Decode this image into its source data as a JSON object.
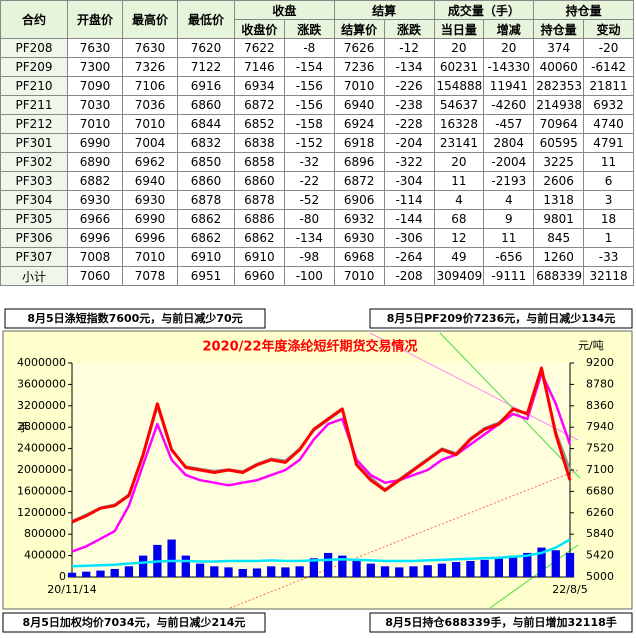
{
  "table": {
    "header_top": [
      "合约",
      "开盘价",
      "最高价",
      "最低价",
      "收盘",
      "结算",
      "成交量（手）",
      "持仓量"
    ],
    "header_sub": [
      "收盘价",
      "涨跌",
      "结算价",
      "涨跌",
      "当日量",
      "增减",
      "持仓量",
      "变动"
    ],
    "rows": [
      [
        "PF208",
        7630,
        7630,
        7620,
        7622,
        -8,
        7626,
        -12,
        20,
        20,
        374,
        -20
      ],
      [
        "PF209",
        7300,
        7326,
        7122,
        7146,
        -154,
        7236,
        -134,
        60231,
        -14330,
        40060,
        -6142
      ],
      [
        "PF210",
        7090,
        7106,
        6916,
        6934,
        -156,
        7010,
        -226,
        154888,
        11941,
        282353,
        21811
      ],
      [
        "PF211",
        7030,
        7036,
        6860,
        6872,
        -156,
        6940,
        -238,
        54637,
        -4260,
        214938,
        6932
      ],
      [
        "PF212",
        7010,
        7010,
        6844,
        6852,
        -158,
        6924,
        -228,
        16328,
        -457,
        70964,
        4740
      ],
      [
        "PF301",
        6990,
        7004,
        6832,
        6838,
        -152,
        6918,
        -204,
        23141,
        2804,
        60595,
        4791
      ],
      [
        "PF302",
        6890,
        6962,
        6850,
        6858,
        -32,
        6896,
        -322,
        20,
        -2004,
        3225,
        11
      ],
      [
        "PF303",
        6882,
        6940,
        6860,
        6860,
        -22,
        6872,
        -304,
        11,
        -2193,
        2606,
        6
      ],
      [
        "PF304",
        6930,
        6930,
        6878,
        6878,
        -52,
        6906,
        -114,
        4,
        4,
        1318,
        3
      ],
      [
        "PF305",
        6966,
        6990,
        6862,
        6886,
        -80,
        6932,
        -144,
        68,
        9,
        9801,
        18
      ],
      [
        "PF306",
        6996,
        6996,
        6862,
        6862,
        -134,
        6930,
        -306,
        12,
        11,
        845,
        1
      ],
      [
        "PF307",
        7008,
        7010,
        6910,
        6910,
        -98,
        6968,
        -264,
        49,
        -656,
        1260,
        -33
      ],
      [
        "小计",
        7060,
        7078,
        6951,
        6960,
        -100,
        7010,
        -208,
        309409,
        -9111,
        688339,
        32118
      ]
    ]
  },
  "notes": {
    "top_left": "8月5日涤短指数7600元，与前日减少70元",
    "top_right": "8月5日PF209价7236元，与前日减少134元",
    "bottom_left": "8月5日加权均价7034元，与前日减少214元",
    "bottom_right": "8月5日持仓688339手，与前日增加32118手"
  },
  "chart_data": {
    "type": "line",
    "title": "2020/22年度涤纶短纤期货交易情况",
    "ylabel": "手",
    "y2label": "元/吨",
    "categories": [
      "20/11/14",
      null,
      null,
      null,
      null,
      null,
      null,
      null,
      null,
      null,
      null,
      null,
      null,
      null,
      null,
      null,
      null,
      null,
      null,
      null,
      null,
      null,
      null,
      null,
      null,
      null,
      null,
      null,
      null,
      null,
      null,
      null,
      null,
      null,
      null,
      "22/8/5"
    ],
    "ylim": [
      0,
      4000000
    ],
    "yticks": [
      0,
      400000,
      800000,
      1200000,
      1600000,
      2000000,
      2400000,
      2800000,
      3200000,
      3600000,
      4000000
    ],
    "y2lim": [
      5000,
      9200
    ],
    "y2ticks": [
      5000,
      5420,
      5840,
      6260,
      6680,
      7100,
      7520,
      7940,
      8360,
      8780,
      9200
    ],
    "grid": false,
    "series": [
      {
        "type": "bar",
        "color": "#0000ee",
        "values": [
          80000,
          100000,
          120000,
          150000,
          200000,
          400000,
          600000,
          700000,
          400000,
          250000,
          200000,
          180000,
          150000,
          160000,
          200000,
          180000,
          200000,
          350000,
          450000,
          400000,
          300000,
          250000,
          200000,
          180000,
          200000,
          220000,
          250000,
          280000,
          300000,
          320000,
          350000,
          400000,
          450000,
          550000,
          500000,
          450000
        ]
      },
      {
        "type": "line",
        "color": "#00e5ff",
        "values": [
          200000,
          210000,
          220000,
          230000,
          250000,
          270000,
          290000,
          300000,
          300000,
          290000,
          290000,
          300000,
          300000,
          300000,
          310000,
          300000,
          300000,
          310000,
          320000,
          330000,
          320000,
          310000,
          300000,
          300000,
          300000,
          310000,
          320000,
          330000,
          340000,
          350000,
          360000,
          380000,
          400000,
          450000,
          550000,
          700000
        ]
      },
      {
        "type": "line",
        "axis": "y2",
        "color": "#999999",
        "values": [
          6100,
          6220,
          6360,
          6420,
          6620,
          7380,
          8350,
          7480,
          7170,
          7120,
          7080,
          7110,
          7070,
          7220,
          7320,
          7280,
          7520,
          7880,
          8080,
          8280,
          7250,
          6950,
          6720,
          6920,
          7120,
          7320,
          7520,
          7430,
          7720,
          7920,
          8030,
          8280,
          8220,
          9050,
          7850,
          7100
        ]
      },
      {
        "type": "line",
        "axis": "y2",
        "color": "#ff00ff",
        "values": [
          5500,
          5600,
          5750,
          5900,
          6400,
          7200,
          8000,
          7300,
          7000,
          6900,
          6850,
          6800,
          6850,
          6900,
          7000,
          7100,
          7300,
          7700,
          8000,
          8100,
          7300,
          7000,
          6850,
          6900,
          7000,
          7100,
          7300,
          7400,
          7600,
          7800,
          8000,
          8200,
          8100,
          9000,
          8400,
          7600
        ]
      },
      {
        "type": "line",
        "axis": "y2",
        "color": "#ff0000",
        "values": [
          6080,
          6200,
          6350,
          6400,
          6600,
          7400,
          8400,
          7500,
          7150,
          7100,
          7050,
          7100,
          7050,
          7200,
          7300,
          7250,
          7500,
          7900,
          8100,
          8300,
          7200,
          6900,
          6700,
          6900,
          7100,
          7300,
          7500,
          7400,
          7700,
          7900,
          8000,
          8300,
          8200,
          9100,
          7800,
          6900
        ]
      }
    ]
  }
}
